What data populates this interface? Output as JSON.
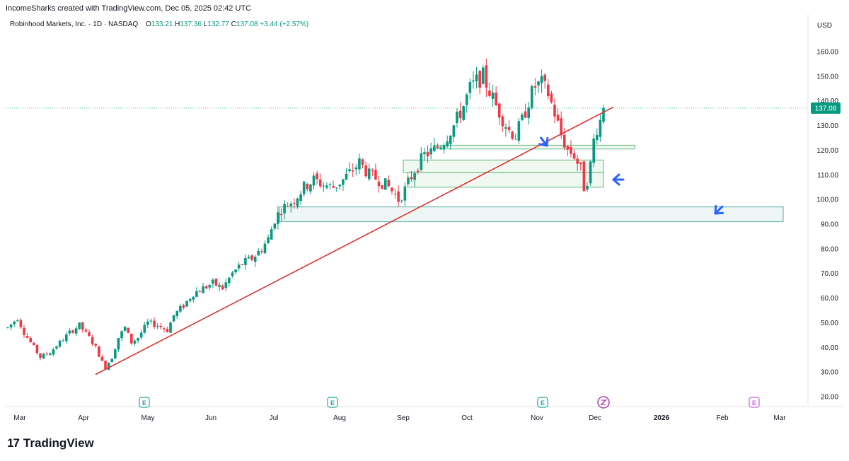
{
  "header": {
    "attribution": "IncomeSharks created with TradingView.com, Dec 05, 2025 02:42 UTC"
  },
  "legend": {
    "symbol": "Robinhood Markets, Inc. · 1D · NASDAQ",
    "o_label": "O",
    "o_value": "133.21",
    "h_label": "H",
    "h_value": "137.36",
    "l_label": "L",
    "l_value": "132.77",
    "c_label": "C",
    "c_value": "137.08",
    "change": "+3.44 (+2.57%)"
  },
  "currency": "USD",
  "logo": {
    "mark": "17",
    "text": "TradingView"
  },
  "colors": {
    "up": "#089981",
    "down": "#f23645",
    "trendline": "#e03030",
    "zone": "#7fc38f",
    "zone_teal": "#6fb8b0",
    "price_tag": "#089981",
    "arrow": "#2962ff",
    "event": "#26a69a",
    "event_future": "#cc5ee6"
  },
  "chart_data": {
    "type": "candlestick",
    "y_ticks": [
      "160.00",
      "150.00",
      "140.00",
      "130.00",
      "120.00",
      "110.00",
      "100.00",
      "90.00",
      "80.00",
      "70.00",
      "60.00",
      "50.00",
      "40.00",
      "30.00",
      "20.00"
    ],
    "ylim": [
      15,
      165
    ],
    "x_months": [
      "Mar",
      "Apr",
      "May",
      "Jun",
      "Jul",
      "Aug",
      "Sep",
      "Oct",
      "Nov",
      "Dec",
      "2026",
      "Feb",
      "Mar"
    ],
    "last_price": "137.08",
    "anchor_points": [
      [
        0,
        48
      ],
      [
        3,
        52
      ],
      [
        5,
        46
      ],
      [
        8,
        40
      ],
      [
        10,
        36
      ],
      [
        13,
        38
      ],
      [
        16,
        42
      ],
      [
        19,
        46
      ],
      [
        22,
        49
      ],
      [
        25,
        44
      ],
      [
        27,
        40
      ],
      [
        29,
        34
      ],
      [
        30,
        32
      ],
      [
        32,
        36
      ],
      [
        34,
        44
      ],
      [
        36,
        48
      ],
      [
        38,
        42
      ],
      [
        40,
        44
      ],
      [
        43,
        50
      ],
      [
        46,
        49
      ],
      [
        49,
        47
      ],
      [
        51,
        53
      ],
      [
        54,
        57
      ],
      [
        57,
        62
      ],
      [
        60,
        64
      ],
      [
        63,
        66
      ],
      [
        66,
        64
      ],
      [
        69,
        70
      ],
      [
        72,
        74
      ],
      [
        75,
        76
      ],
      [
        78,
        80
      ],
      [
        80,
        84
      ],
      [
        82,
        92
      ],
      [
        84,
        96
      ],
      [
        86,
        98
      ],
      [
        88,
        100
      ],
      [
        91,
        105
      ],
      [
        94,
        108
      ],
      [
        97,
        106
      ],
      [
        100,
        105
      ],
      [
        103,
        108
      ],
      [
        106,
        112
      ],
      [
        108,
        115
      ],
      [
        111,
        110
      ],
      [
        114,
        108
      ],
      [
        117,
        105
      ],
      [
        119,
        102
      ],
      [
        120,
        100
      ],
      [
        122,
        104
      ],
      [
        125,
        112
      ],
      [
        128,
        118
      ],
      [
        131,
        120
      ],
      [
        134,
        124
      ],
      [
        137,
        130
      ],
      [
        140,
        138
      ],
      [
        142,
        145
      ],
      [
        144,
        148
      ],
      [
        146,
        150
      ],
      [
        148,
        144
      ],
      [
        150,
        138
      ],
      [
        152,
        133
      ],
      [
        154,
        128
      ],
      [
        156,
        126
      ],
      [
        158,
        132
      ],
      [
        160,
        140
      ],
      [
        162,
        146
      ],
      [
        164,
        147
      ],
      [
        166,
        143
      ],
      [
        168,
        135
      ],
      [
        170,
        126
      ],
      [
        172,
        120
      ],
      [
        174,
        118
      ],
      [
        176,
        112
      ],
      [
        177,
        105
      ],
      [
        178,
        108
      ],
      [
        179,
        114
      ],
      [
        180,
        124
      ],
      [
        181,
        129
      ],
      [
        182,
        132
      ],
      [
        183,
        137
      ]
    ],
    "trendline": {
      "from": [
        "Apr 08",
        29
      ],
      "to": [
        "Dec 10",
        137.5
      ]
    },
    "zones": [
      {
        "low": 120.5,
        "high": 122,
        "kind": "green"
      },
      {
        "low": 111,
        "high": 116,
        "kind": "green"
      },
      {
        "low": 105,
        "high": 111,
        "kind": "green"
      },
      {
        "low": 91,
        "high": 97,
        "kind": "teal"
      }
    ],
    "event_markers": [
      "E",
      "E",
      "E",
      "E"
    ]
  }
}
